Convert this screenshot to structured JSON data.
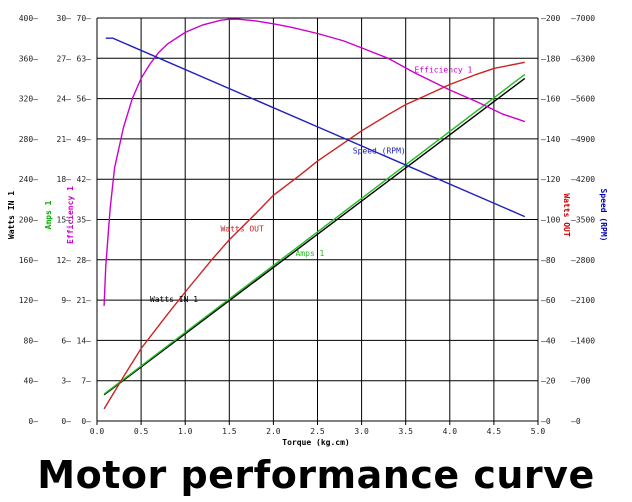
{
  "caption": "Motor performance curve",
  "chart_data": {
    "type": "line",
    "xlabel": "Torque (kg.cm)",
    "xlim": [
      0,
      5.0
    ],
    "xticks": [
      "0.0",
      "0.5",
      "1.0",
      "1.5",
      "2.0",
      "2.5",
      "3.0",
      "3.5",
      "4.0",
      "4.5",
      "5.0"
    ],
    "axes": [
      {
        "id": "watts_in",
        "title": "Watts IN 1",
        "color": "#000000",
        "side": "left",
        "ticks": [
          "0",
          "40",
          "80",
          "120",
          "160",
          "200",
          "240",
          "280",
          "320",
          "360",
          "400"
        ],
        "range": [
          0,
          400
        ]
      },
      {
        "id": "amps",
        "title": "Amps 1",
        "color": "#00aa00",
        "side": "left",
        "ticks": [
          "0",
          "3",
          "6",
          "9",
          "12",
          "15",
          "18",
          "21",
          "24",
          "27",
          "30"
        ],
        "range": [
          0,
          30
        ]
      },
      {
        "id": "efficiency",
        "title": "Efficiency 1",
        "color": "#cc00cc",
        "side": "left",
        "ticks": [
          "0",
          "7",
          "14",
          "21",
          "28",
          "35",
          "42",
          "49",
          "56",
          "63",
          "70"
        ],
        "range": [
          0,
          70
        ]
      },
      {
        "id": "watts_out",
        "title": "Watts OUT",
        "color": "#cc0000",
        "side": "right",
        "ticks": [
          "0",
          "20",
          "40",
          "60",
          "80",
          "100",
          "120",
          "140",
          "160",
          "180",
          "200"
        ],
        "range": [
          0,
          200
        ]
      },
      {
        "id": "speed",
        "title": "Speed (RPM)",
        "color": "#0000bb",
        "side": "right",
        "ticks": [
          "0",
          "700",
          "1400",
          "2100",
          "2800",
          "3500",
          "4200",
          "4900",
          "5600",
          "6300",
          "7000"
        ],
        "range": [
          0,
          7000
        ]
      }
    ],
    "series": [
      {
        "name": "Watts IN 1",
        "axis": "watts_in",
        "color": "#000000",
        "x": [
          0.08,
          4.85
        ],
        "y": [
          26,
          340
        ]
      },
      {
        "name": "Amps 1",
        "axis": "amps",
        "color": "#22bb22",
        "x": [
          0.08,
          4.85
        ],
        "y": [
          2.0,
          25.8
        ]
      },
      {
        "name": "Efficiency 1",
        "axis": "efficiency",
        "color": "#cc00cc",
        "x": [
          0.08,
          0.1,
          0.15,
          0.2,
          0.3,
          0.4,
          0.5,
          0.6,
          0.7,
          0.8,
          1.0,
          1.2,
          1.4,
          1.5,
          1.6,
          1.8,
          2.0,
          2.2,
          2.5,
          2.8,
          3.0,
          3.3,
          3.6,
          4.0,
          4.3,
          4.6,
          4.85
        ],
        "y": [
          20,
          27,
          37,
          44,
          51,
          56,
          59.5,
          62,
          64,
          65.5,
          67.5,
          68.8,
          69.6,
          69.8,
          69.8,
          69.5,
          69.0,
          68.4,
          67.3,
          66.0,
          64.8,
          63.0,
          60.5,
          57.5,
          55.5,
          53.3,
          52.0
        ]
      },
      {
        "name": "Watts OUT",
        "axis": "watts_out",
        "color": "#cc2222",
        "x": [
          0.08,
          0.3,
          0.5,
          0.8,
          1.0,
          1.3,
          1.5,
          1.8,
          2.0,
          2.3,
          2.5,
          2.8,
          3.0,
          3.3,
          3.5,
          3.8,
          4.0,
          4.3,
          4.5,
          4.85
        ],
        "y": [
          6,
          22,
          36,
          53,
          64,
          80,
          90,
          103,
          112,
          122,
          129,
          138,
          144,
          152,
          157,
          163,
          167,
          172,
          175,
          178
        ]
      },
      {
        "name": "Speed (RPM)",
        "axis": "speed",
        "color": "#2222bb",
        "x": [
          0.1,
          0.18,
          4.85
        ],
        "y": [
          6650,
          6650,
          3550
        ]
      }
    ],
    "annotations": [
      {
        "text": "Efficiency 1",
        "color": "#cc00cc",
        "x": 3.6,
        "axis": "efficiency",
        "y": 60.5
      },
      {
        "text": "Speed (RPM)",
        "color": "#2222bb",
        "x": 2.9,
        "axis": "speed",
        "y": 4650
      },
      {
        "text": "Watts OUT",
        "color": "#cc2222",
        "x": 1.4,
        "axis": "watts_out",
        "y": 94
      },
      {
        "text": "Amps 1",
        "color": "#22bb22",
        "x": 2.25,
        "axis": "amps",
        "y": 12.3
      },
      {
        "text": "Watts IN 1",
        "color": "#000000",
        "x": 0.6,
        "axis": "watts_in",
        "y": 118
      }
    ],
    "grid": true
  }
}
